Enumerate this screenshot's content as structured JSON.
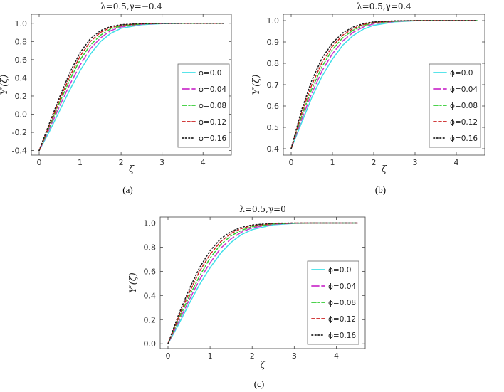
{
  "chart_data": [
    {
      "type": "line",
      "title": "λ=0.5,γ=−0.4",
      "xlabel": "ζ",
      "ylabel": "Y′(ζ)",
      "sublabel": "(a)",
      "xlim": [
        0,
        4.5
      ],
      "ylim": [
        -0.45,
        1.1
      ],
      "xticks": [
        "0",
        "1",
        "2",
        "3",
        "4"
      ],
      "yticks": [
        "-0.4",
        "-0.2",
        "0.0",
        "0.2",
        "0.4",
        "0.6",
        "0.8",
        "1.0"
      ],
      "y0": -0.4,
      "grid": false,
      "legend_position": "center-right",
      "x": [
        0,
        0.25,
        0.5,
        0.75,
        1.0,
        1.25,
        1.5,
        1.75,
        2.0,
        2.5,
        3.0,
        3.5,
        4.0,
        4.5
      ],
      "series": [
        {
          "name": "ϕ=0.0",
          "color": "#40e0e8",
          "dash": "solid",
          "values": [
            -0.4,
            -0.19,
            0.04,
            0.27,
            0.48,
            0.66,
            0.8,
            0.89,
            0.945,
            0.985,
            0.997,
            1.0,
            1.0,
            1.0
          ]
        },
        {
          "name": "ϕ=0.04",
          "color": "#cc33cc",
          "dash": "longdash",
          "values": [
            -0.4,
            -0.16,
            0.09,
            0.33,
            0.54,
            0.72,
            0.84,
            0.92,
            0.96,
            0.99,
            0.998,
            1.0,
            1.0,
            1.0
          ]
        },
        {
          "name": "ϕ=0.08",
          "color": "#33cc33",
          "dash": "dashdot",
          "values": [
            -0.4,
            -0.14,
            0.13,
            0.38,
            0.6,
            0.76,
            0.87,
            0.94,
            0.97,
            0.993,
            0.999,
            1.0,
            1.0,
            1.0
          ]
        },
        {
          "name": "ϕ=0.12",
          "color": "#cc2222",
          "dash": "dash",
          "values": [
            -0.4,
            -0.12,
            0.16,
            0.42,
            0.64,
            0.8,
            0.9,
            0.955,
            0.98,
            0.996,
            1.0,
            1.0,
            1.0,
            1.0
          ]
        },
        {
          "name": "ϕ=0.16",
          "color": "#222222",
          "dash": "dot",
          "values": [
            -0.4,
            -0.1,
            0.19,
            0.46,
            0.68,
            0.83,
            0.92,
            0.965,
            0.985,
            0.997,
            1.0,
            1.0,
            1.0,
            1.0
          ]
        }
      ]
    },
    {
      "type": "line",
      "title": "λ=0.5,γ=0.4",
      "xlabel": "ζ",
      "ylabel": "Y′(ζ)",
      "sublabel": "(b)",
      "xlim": [
        0,
        4.5
      ],
      "ylim": [
        0.37,
        1.03
      ],
      "xticks": [
        "0",
        "1",
        "2",
        "3",
        "4"
      ],
      "yticks": [
        "0.4",
        "0.5",
        "0.6",
        "0.7",
        "0.8",
        "0.9",
        "1.0"
      ],
      "y0": 0.4,
      "grid": false,
      "legend_position": "center-right",
      "x": [
        0,
        0.25,
        0.5,
        0.75,
        1.0,
        1.25,
        1.5,
        1.75,
        2.0,
        2.5,
        3.0,
        3.5,
        4.0,
        4.5
      ],
      "series": [
        {
          "name": "ϕ=0.0",
          "color": "#40e0e8",
          "dash": "solid",
          "values": [
            0.4,
            0.52,
            0.64,
            0.74,
            0.82,
            0.885,
            0.93,
            0.96,
            0.978,
            0.994,
            0.999,
            1.0,
            1.0,
            1.0
          ]
        },
        {
          "name": "ϕ=0.04",
          "color": "#cc33cc",
          "dash": "longdash",
          "values": [
            0.4,
            0.535,
            0.66,
            0.765,
            0.845,
            0.905,
            0.945,
            0.97,
            0.985,
            0.996,
            1.0,
            1.0,
            1.0,
            1.0
          ]
        },
        {
          "name": "ϕ=0.08",
          "color": "#33cc33",
          "dash": "dashdot",
          "values": [
            0.4,
            0.55,
            0.68,
            0.785,
            0.865,
            0.92,
            0.955,
            0.977,
            0.989,
            0.997,
            1.0,
            1.0,
            1.0,
            1.0
          ]
        },
        {
          "name": "ϕ=0.12",
          "color": "#cc2222",
          "dash": "dash",
          "values": [
            0.4,
            0.565,
            0.7,
            0.805,
            0.88,
            0.932,
            0.963,
            0.982,
            0.992,
            0.998,
            1.0,
            1.0,
            1.0,
            1.0
          ]
        },
        {
          "name": "ϕ=0.16",
          "color": "#222222",
          "dash": "dot",
          "values": [
            0.4,
            0.58,
            0.72,
            0.825,
            0.895,
            0.943,
            0.97,
            0.986,
            0.994,
            0.999,
            1.0,
            1.0,
            1.0,
            1.0
          ]
        }
      ]
    },
    {
      "type": "line",
      "title": "λ=0.5,γ=0",
      "xlabel": "ζ",
      "ylabel": "Y′(ζ)",
      "sublabel": "(c)",
      "xlim": [
        0,
        4.5
      ],
      "ylim": [
        -0.04,
        1.05
      ],
      "xticks": [
        "0",
        "1",
        "2",
        "3",
        "4"
      ],
      "yticks": [
        "0.0",
        "0.2",
        "0.4",
        "0.6",
        "0.8",
        "1.0"
      ],
      "y0": 0.0,
      "grid": false,
      "legend_position": "center-right",
      "x": [
        0,
        0.25,
        0.5,
        0.75,
        1.0,
        1.25,
        1.5,
        1.75,
        2.0,
        2.5,
        3.0,
        3.5,
        4.0,
        4.5
      ],
      "series": [
        {
          "name": "ϕ=0.0",
          "color": "#40e0e8",
          "dash": "solid",
          "values": [
            0.0,
            0.16,
            0.33,
            0.49,
            0.63,
            0.75,
            0.84,
            0.905,
            0.945,
            0.985,
            0.997,
            1.0,
            1.0,
            1.0
          ]
        },
        {
          "name": "ϕ=0.04",
          "color": "#cc33cc",
          "dash": "longdash",
          "values": [
            0.0,
            0.18,
            0.36,
            0.53,
            0.67,
            0.79,
            0.87,
            0.925,
            0.96,
            0.99,
            0.998,
            1.0,
            1.0,
            1.0
          ]
        },
        {
          "name": "ϕ=0.08",
          "color": "#33cc33",
          "dash": "dashdot",
          "values": [
            0.0,
            0.2,
            0.39,
            0.56,
            0.71,
            0.82,
            0.895,
            0.94,
            0.97,
            0.993,
            0.999,
            1.0,
            1.0,
            1.0
          ]
        },
        {
          "name": "ϕ=0.12",
          "color": "#cc2222",
          "dash": "dash",
          "values": [
            0.0,
            0.22,
            0.42,
            0.6,
            0.74,
            0.845,
            0.915,
            0.955,
            0.978,
            0.996,
            1.0,
            1.0,
            1.0,
            1.0
          ]
        },
        {
          "name": "ϕ=0.16",
          "color": "#222222",
          "dash": "dot",
          "values": [
            0.0,
            0.24,
            0.45,
            0.63,
            0.77,
            0.87,
            0.93,
            0.965,
            0.984,
            0.998,
            1.0,
            1.0,
            1.0,
            1.0
          ]
        }
      ]
    }
  ]
}
